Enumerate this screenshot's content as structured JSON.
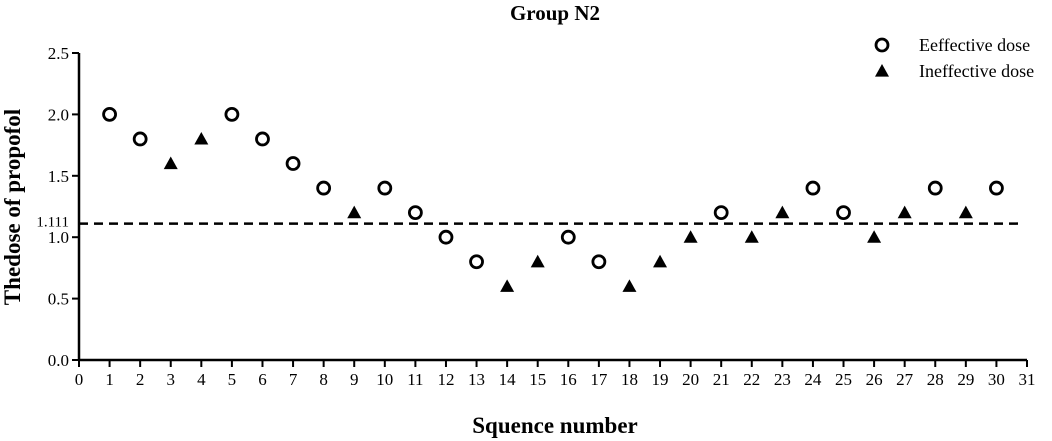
{
  "chart_data": {
    "type": "scatter",
    "title": "Group N2",
    "xlabel": "Squence number",
    "ylabel": "Thedose of propofol",
    "xlim": [
      0,
      31
    ],
    "ylim": [
      0.0,
      2.5
    ],
    "x_ticks": [
      "0",
      "1",
      "2",
      "3",
      "4",
      "5",
      "6",
      "7",
      "8",
      "9",
      "10",
      "11",
      "12",
      "13",
      "14",
      "15",
      "16",
      "17",
      "18",
      "19",
      "20",
      "21",
      "22",
      "23",
      "24",
      "25",
      "26",
      "27",
      "28",
      "29",
      "30",
      "31"
    ],
    "y_ticks": [
      "0.0",
      "0.5",
      "1.0",
      "1.5",
      "2.0",
      "2.5"
    ],
    "reference_line": {
      "value": 1.111,
      "label": "1.111",
      "style": "dashed"
    },
    "legend_position": "top-right",
    "series": [
      {
        "name": "Eeffective dose",
        "marker": "open-circle",
        "x": [
          1,
          2,
          5,
          6,
          7,
          8,
          10,
          11,
          12,
          13,
          16,
          17,
          21,
          24,
          25,
          28,
          30
        ],
        "y": [
          2.0,
          1.8,
          2.0,
          1.8,
          1.6,
          1.4,
          1.4,
          1.2,
          1.0,
          0.8,
          1.0,
          0.8,
          1.2,
          1.4,
          1.2,
          1.4,
          1.4
        ]
      },
      {
        "name": "Ineffective dose",
        "marker": "filled-triangle",
        "x": [
          3,
          4,
          9,
          14,
          15,
          18,
          19,
          20,
          22,
          23,
          26,
          27,
          29
        ],
        "y": [
          1.6,
          1.8,
          1.2,
          0.6,
          0.8,
          0.6,
          0.8,
          1.0,
          1.0,
          1.2,
          1.0,
          1.2,
          1.2
        ]
      }
    ],
    "colors": {
      "ink": "#000000",
      "background": "#ffffff"
    }
  }
}
